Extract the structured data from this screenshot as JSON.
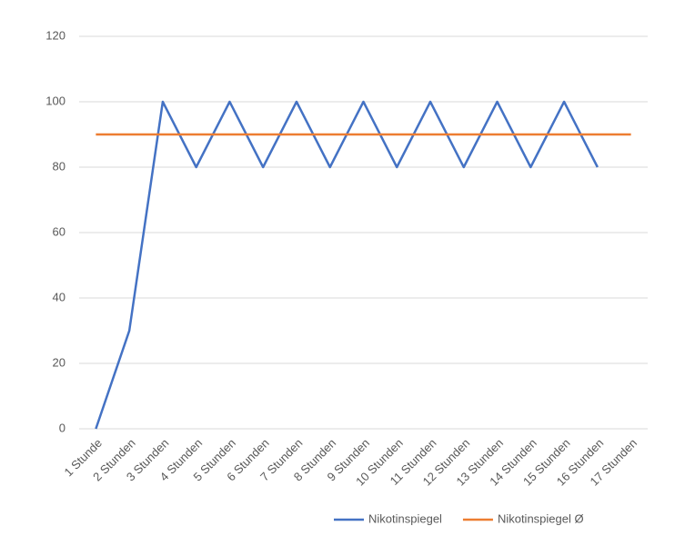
{
  "chart_data": {
    "type": "line",
    "categories": [
      "1 Stunde",
      "2 Stunden",
      "3 Stunden",
      "4 Stunden",
      "5 Stunden",
      "6 Stunden",
      "7 Stunden",
      "8 Stunden",
      "9 Stunden",
      "10 Stunden",
      "11 Stunden",
      "12 Stunden",
      "13 Stunden",
      "14 Stunden",
      "15 Stunden",
      "16 Stunden",
      "17 Stunden"
    ],
    "series": [
      {
        "name": "Nikotinspiegel",
        "color": "#4472c4",
        "values": [
          0,
          30,
          100,
          80,
          100,
          80,
          100,
          80,
          100,
          80,
          100,
          80,
          100,
          80,
          100,
          80,
          null
        ]
      },
      {
        "name": "Nikotinspiegel Ø",
        "color": "#ed7d31",
        "values": [
          90,
          90,
          90,
          90,
          90,
          90,
          90,
          90,
          90,
          90,
          90,
          90,
          90,
          90,
          90,
          90,
          90
        ]
      }
    ],
    "ylim": [
      0,
      120
    ],
    "yticks": [
      0,
      20,
      40,
      60,
      80,
      100,
      120
    ],
    "grid": true,
    "legend": "bottom"
  }
}
